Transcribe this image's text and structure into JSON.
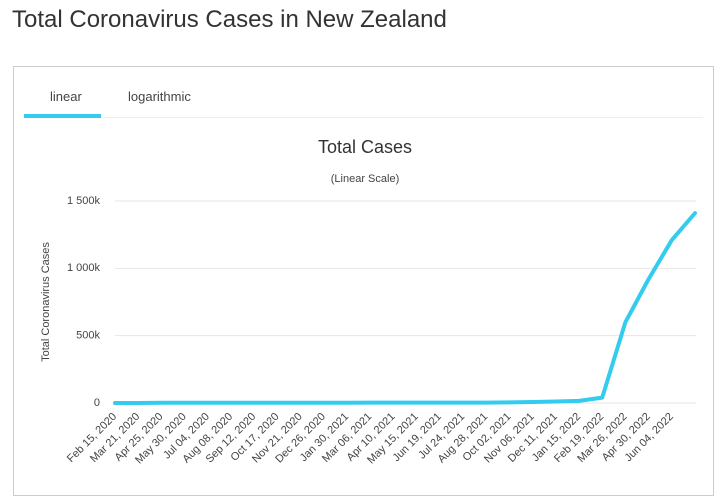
{
  "page_title": "Total Coronavirus Cases in New Zealand",
  "tabs": [
    "linear",
    "logarithmic"
  ],
  "chart_data": {
    "type": "line",
    "title": "Total Cases",
    "subtitle": "(Linear Scale)",
    "y_label": "Total Coronavirus Cases",
    "categories": [
      "Feb 15, 2020",
      "Mar 21, 2020",
      "Apr 25, 2020",
      "May 30, 2020",
      "Jul 04, 2020",
      "Aug 08, 2020",
      "Sep 12, 2020",
      "Oct 17, 2020",
      "Nov 21, 2020",
      "Dec 26, 2020",
      "Jan 30, 2021",
      "Mar 06, 2021",
      "Apr 10, 2021",
      "May 15, 2021",
      "Jun 19, 2021",
      "Jul 24, 2021",
      "Aug 28, 2021",
      "Oct 02, 2021",
      "Nov 06, 2021",
      "Dec 11, 2021",
      "Jan 15, 2022",
      "Feb 19, 2022",
      "Mar 26, 2022",
      "Apr 30, 2022",
      "Jun 04, 2022",
      null
    ],
    "series": [
      {
        "name": "Total Cases",
        "color": "#33ccee",
        "values": [
          0,
          52,
          1470,
          1504,
          1530,
          1570,
          1800,
          1900,
          2000,
          2150,
          2300,
          2400,
          2550,
          2650,
          2750,
          2850,
          3200,
          4500,
          7000,
          11500,
          15500,
          40000,
          600000,
          920000,
          1210000,
          1410000
        ]
      }
    ],
    "ylim": [
      0,
      1500000
    ],
    "yticks": [
      0,
      {
        "value": 500000,
        "label": "500k"
      },
      {
        "value": 1000000,
        "label": "1 000k"
      },
      {
        "value": 1500000,
        "label": "1 500k"
      }
    ],
    "grid": true
  }
}
